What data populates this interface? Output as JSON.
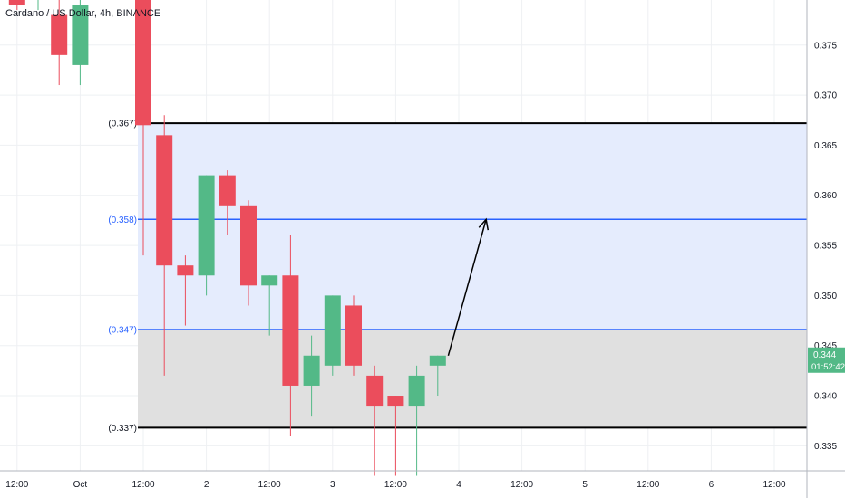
{
  "header": {
    "title": "Cardano / US Dollar, 4h, BINANCE"
  },
  "colors": {
    "up": "#53b987",
    "down": "#eb4d5c",
    "zone_upper": "#e5ecfd",
    "zone_lower": "#e0e0e0",
    "level_blue": "#2962ff",
    "level_black": "#000000",
    "price_label_bg": "#53b987",
    "grid": "#eef0f3"
  },
  "chart_data": {
    "type": "candlestick",
    "symbol": "Cardano / US Dollar",
    "interval": "4h",
    "exchange": "BINANCE",
    "ylim": [
      0.3325,
      0.3795
    ],
    "y_ticks": [
      0.335,
      0.34,
      0.345,
      0.35,
      0.355,
      0.36,
      0.365,
      0.37,
      0.375
    ],
    "y_tick_labels": [
      "0.335",
      "0.340",
      "0.345",
      "0.350",
      "0.355",
      "0.360",
      "0.365",
      "0.370",
      "0.375"
    ],
    "x_ticks": [
      {
        "bar": -6,
        "label": "12:00"
      },
      {
        "bar": -3,
        "label": "Oct"
      },
      {
        "bar": 0,
        "label": "12:00"
      },
      {
        "bar": 3,
        "label": "2"
      },
      {
        "bar": 6,
        "label": "12:00"
      },
      {
        "bar": 9,
        "label": "3"
      },
      {
        "bar": 12,
        "label": "12:00"
      },
      {
        "bar": 15,
        "label": "4"
      },
      {
        "bar": 18,
        "label": "12:00"
      },
      {
        "bar": 21,
        "label": "5"
      },
      {
        "bar": 24,
        "label": "12:00"
      },
      {
        "bar": 27,
        "label": "6"
      },
      {
        "bar": 30,
        "label": "12:00"
      }
    ],
    "candles": [
      {
        "bar": -6,
        "open": 0.38,
        "high": 0.381,
        "low": 0.3785,
        "close": 0.379
      },
      {
        "bar": -5,
        "open": 0.3795,
        "high": 0.3805,
        "low": 0.3785,
        "close": 0.38
      },
      {
        "bar": -4,
        "open": 0.378,
        "high": 0.38,
        "low": 0.371,
        "close": 0.374
      },
      {
        "bar": -3,
        "open": 0.373,
        "high": 0.38,
        "low": 0.371,
        "close": 0.379
      },
      {
        "bar": 0,
        "open": 0.381,
        "high": 0.3815,
        "low": 0.354,
        "close": 0.367
      },
      {
        "bar": 1,
        "open": 0.366,
        "high": 0.368,
        "low": 0.342,
        "close": 0.353
      },
      {
        "bar": 2,
        "open": 0.353,
        "high": 0.354,
        "low": 0.347,
        "close": 0.352
      },
      {
        "bar": 3,
        "open": 0.352,
        "high": 0.362,
        "low": 0.35,
        "close": 0.362
      },
      {
        "bar": 4,
        "open": 0.362,
        "high": 0.3625,
        "low": 0.356,
        "close": 0.359
      },
      {
        "bar": 5,
        "open": 0.359,
        "high": 0.3595,
        "low": 0.349,
        "close": 0.351
      },
      {
        "bar": 6,
        "open": 0.351,
        "high": 0.352,
        "low": 0.346,
        "close": 0.352
      },
      {
        "bar": 7,
        "open": 0.352,
        "high": 0.356,
        "low": 0.336,
        "close": 0.341
      },
      {
        "bar": 8,
        "open": 0.341,
        "high": 0.346,
        "low": 0.338,
        "close": 0.344
      },
      {
        "bar": 9,
        "open": 0.343,
        "high": 0.35,
        "low": 0.342,
        "close": 0.35
      },
      {
        "bar": 10,
        "open": 0.349,
        "high": 0.35,
        "low": 0.342,
        "close": 0.343
      },
      {
        "bar": 11,
        "open": 0.342,
        "high": 0.343,
        "low": 0.332,
        "close": 0.339
      },
      {
        "bar": 12,
        "open": 0.34,
        "high": 0.34,
        "low": 0.332,
        "close": 0.339
      },
      {
        "bar": 13,
        "open": 0.339,
        "high": 0.343,
        "low": 0.332,
        "close": 0.342
      },
      {
        "bar": 14,
        "open": 0.343,
        "high": 0.344,
        "low": 0.34,
        "close": 0.344
      }
    ],
    "levels": [
      {
        "price": 0.3672,
        "label": "(0.367)",
        "color": "black"
      },
      {
        "price": 0.3576,
        "label": "(0.358)",
        "color": "blue"
      },
      {
        "price": 0.3466,
        "label": "(0.347)",
        "color": "blue"
      },
      {
        "price": 0.3368,
        "label": "(0.337)",
        "color": "black"
      }
    ],
    "zones": [
      {
        "from": 0.3466,
        "to": 0.3672,
        "color": "zone_upper"
      },
      {
        "from": 0.3368,
        "to": 0.3466,
        "color": "zone_lower"
      }
    ],
    "arrow": {
      "from": {
        "bar": 14.5,
        "price": 0.344
      },
      "to": {
        "bar": 16.3,
        "price": 0.3576
      }
    },
    "last_price": {
      "value": "0.344",
      "countdown": "01:52:42"
    }
  }
}
